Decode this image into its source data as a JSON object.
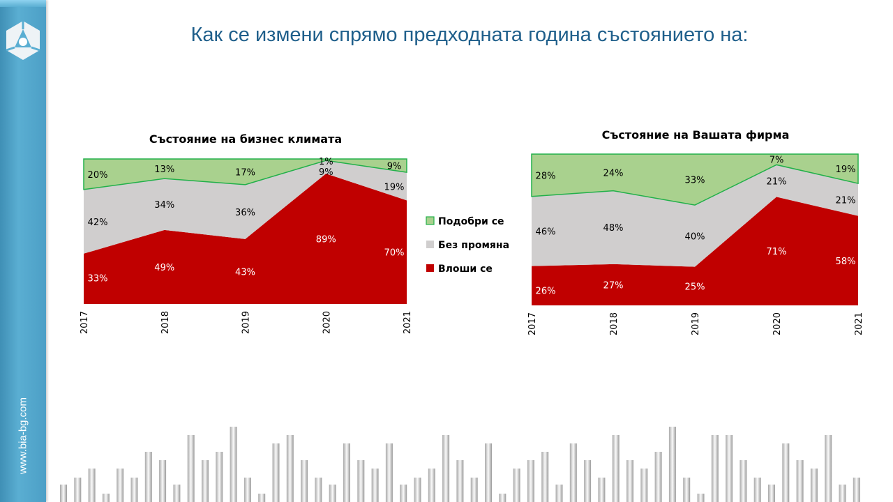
{
  "header": {
    "title": "Как се измени спрямо предходната година състоянието на:"
  },
  "sidebar": {
    "url": "www.bia-bg.com",
    "logo_icon": "bia-logo-icon"
  },
  "colors": {
    "worse": "#c00000",
    "same": "#d0cece",
    "better": "#a9d18e",
    "better_line": "#22b04a",
    "title": "#1f5f8b"
  },
  "legend": [
    {
      "label": "Подобри се",
      "key": "better"
    },
    {
      "label": "Без промяна",
      "key": "same"
    },
    {
      "label": "Влоши се",
      "key": "worse"
    }
  ],
  "chart_data": [
    {
      "type": "area",
      "stacked": "percent",
      "title": "Състояние на бизнес климата",
      "categories": [
        "2017",
        "2018",
        "2019",
        "2020",
        "2021"
      ],
      "series": [
        {
          "name": "Влоши се",
          "values": [
            33,
            49,
            43,
            89,
            70
          ]
        },
        {
          "name": "Без промяна",
          "values": [
            42,
            34,
            36,
            9,
            19
          ]
        },
        {
          "name": "Подобри се",
          "values": [
            20,
            13,
            17,
            1,
            9
          ]
        }
      ],
      "value_labels": {
        "Влоши се": [
          "33%",
          "49%",
          "43%",
          "89%",
          "70%"
        ],
        "Без промяна": [
          "42%",
          "34%",
          "36%",
          "9%",
          "19%"
        ],
        "Подобри се": [
          "20%",
          "13%",
          "17%",
          "1%",
          "9%"
        ]
      },
      "legend": "right"
    },
    {
      "type": "area",
      "stacked": "percent",
      "title": "Състояние на Вашата фирма",
      "categories": [
        "2017",
        "2018",
        "2019",
        "2020",
        "2021"
      ],
      "series": [
        {
          "name": "Влоши се",
          "values": [
            26,
            27,
            25,
            71,
            58
          ]
        },
        {
          "name": "Без промяна",
          "values": [
            46,
            48,
            40,
            21,
            21
          ]
        },
        {
          "name": "Подобри се",
          "values": [
            28,
            24,
            33,
            7,
            19
          ]
        }
      ],
      "value_labels": {
        "Влоши се": [
          "26%",
          "27%",
          "25%",
          "71%",
          "58%"
        ],
        "Без промяна": [
          "46%",
          "48%",
          "40%",
          "21%",
          "21%"
        ],
        "Подобри се": [
          "28%",
          "24%",
          "33%",
          "7%",
          "19%"
        ]
      },
      "legend": "none"
    }
  ]
}
